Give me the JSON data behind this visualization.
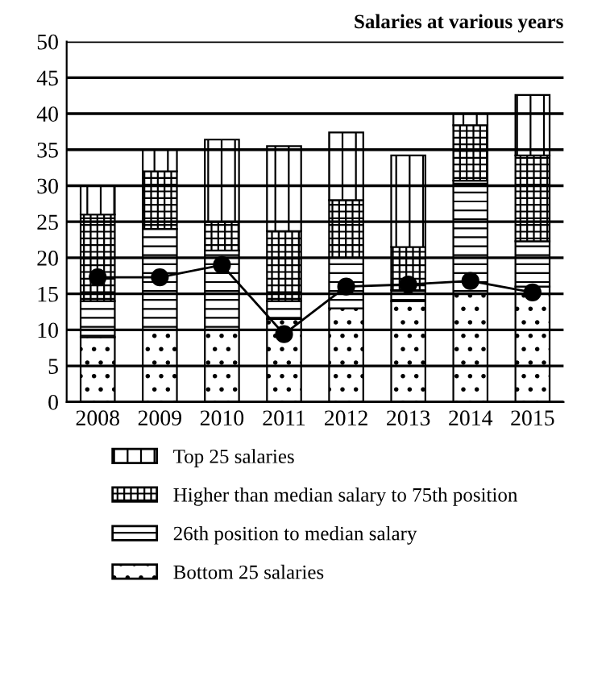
{
  "chart_data": {
    "type": "bar",
    "stacked": true,
    "title": "Salaries at various years",
    "categories": [
      "2008",
      "2009",
      "2010",
      "2011",
      "2012",
      "2013",
      "2014",
      "2015"
    ],
    "series": [
      {
        "name": "Bottom 25 salaries",
        "color": "#000000",
        "values": [
          9,
          10,
          10,
          11.5,
          13,
          14,
          15,
          16
        ]
      },
      {
        "name": "26th position to median salary",
        "color": "#000000",
        "values": [
          5,
          14,
          11,
          2.5,
          7,
          1.5,
          15.7,
          6.3
        ]
      },
      {
        "name": "Higher than median salary to 75th position",
        "color": "#000000",
        "values": [
          12,
          8,
          4,
          9.7,
          8,
          6,
          7.7,
          11.9
        ]
      },
      {
        "name": "Top 25 salaries",
        "color": "#000000",
        "values": [
          4,
          3,
          11.4,
          11.8,
          9.4,
          12.7,
          1.6,
          8.4
        ]
      },
      {
        "type": "line",
        "color": "#000000",
        "marker": "circle",
        "values": [
          17.3,
          17.3,
          19,
          9.4,
          16,
          16.3,
          16.8,
          15.2
        ]
      }
    ],
    "ylim": [
      0,
      50
    ],
    "yticks": [
      0,
      5,
      10,
      15,
      20,
      25,
      30,
      35,
      40,
      45,
      50
    ],
    "grid": "y",
    "legend": "bottom"
  }
}
